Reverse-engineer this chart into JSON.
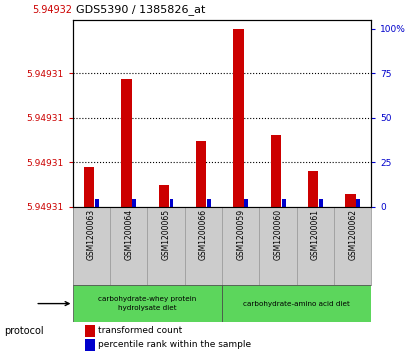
{
  "title": "GDS5390 / 1385826_at",
  "samples": [
    "GSM1200063",
    "GSM1200064",
    "GSM1200065",
    "GSM1200066",
    "GSM1200059",
    "GSM1200060",
    "GSM1200061",
    "GSM1200062"
  ],
  "red_pct": [
    22,
    72,
    12,
    37,
    100,
    40,
    20,
    7
  ],
  "blue_pct": [
    4,
    4,
    4,
    4,
    4,
    4,
    4,
    4
  ],
  "ymin": 5.94931,
  "ymax": 5.94932,
  "ytick_pcts": [
    0,
    25,
    50,
    75
  ],
  "ytick_label": "5.94931",
  "ytop_label": "5.94932",
  "right_yticks": [
    0,
    25,
    50,
    75,
    100
  ],
  "group1_label": "carbohydrate-whey protein\nhydrolysate diet",
  "group2_label": "carbohydrate-amino acid diet",
  "group_color": "#5CD65C",
  "sample_bg": "#CCCCCC",
  "red_color": "#CC0000",
  "blue_color": "#0000CC",
  "plot_bg": "#FFFFFF",
  "legend_red": "transformed count",
  "legend_blue": "percentile rank within the sample"
}
